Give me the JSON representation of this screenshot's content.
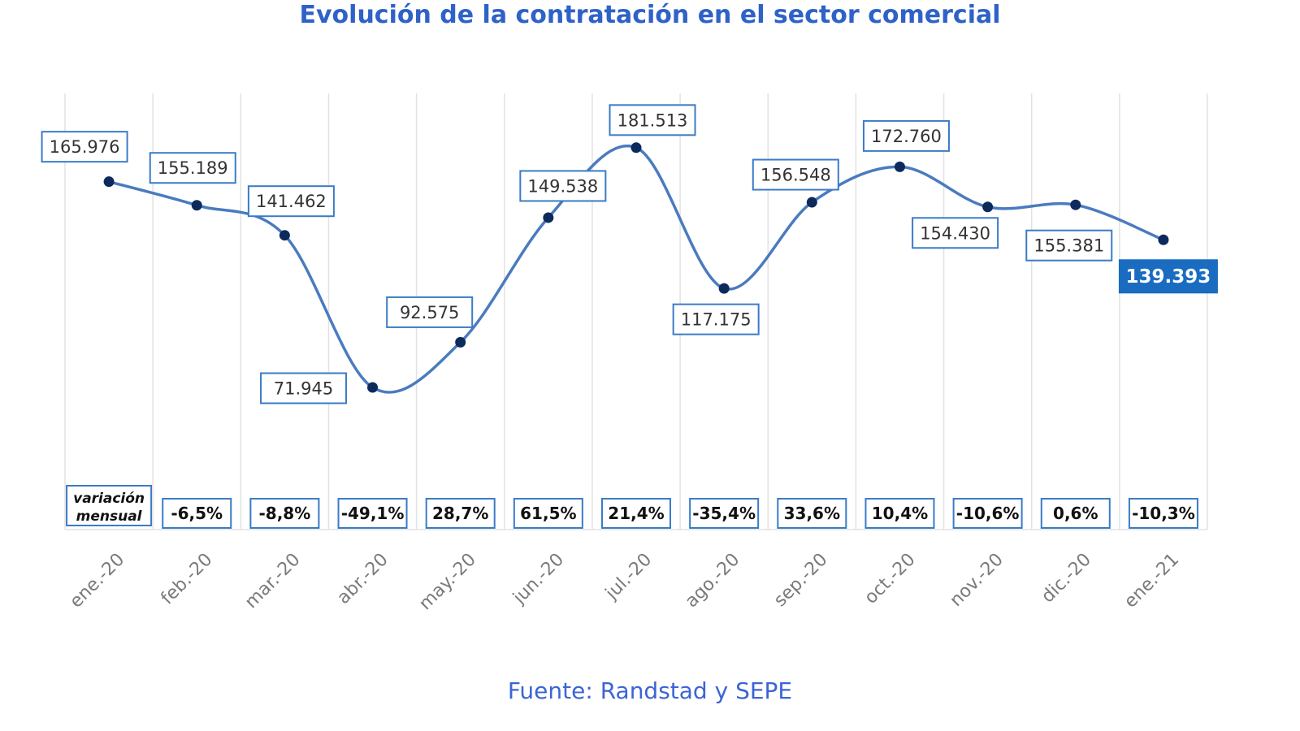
{
  "title": "Evolución de la contratación en el sector comercial",
  "source": "Fuente: Randstad y SEPE",
  "colors": {
    "title": "#2f62c8",
    "line": "#4a7bbf",
    "marker": "#0d2a5c",
    "label_border": "#3a7bc8",
    "highlight": "#1a6cc0",
    "source": "#3c64d4",
    "grid": "#e2e2e2"
  },
  "variation_title": [
    "variación",
    "mensual"
  ],
  "chart_data": {
    "type": "line",
    "title": "Evolución de la contratación en el sector comercial",
    "categories": [
      "ene.-20",
      "feb.-20",
      "mar.-20",
      "abr.-20",
      "may.-20",
      "jun.-20",
      "jul.-20",
      "ago.-20",
      "sep.-20",
      "oct.-20",
      "nov.-20",
      "dic.-20",
      "ene.-21"
    ],
    "values": [
      165976,
      155189,
      141462,
      71945,
      92575,
      149538,
      181513,
      117175,
      156548,
      172760,
      154430,
      155381,
      139393
    ],
    "value_labels": [
      "165.976",
      "155.189",
      "141.462",
      "71.945",
      "92.575",
      "149.538",
      "181.513",
      "117.175",
      "156.548",
      "172.760",
      "154.430",
      "155.381",
      "139.393"
    ],
    "monthly_variation": [
      "",
      "-6,5%",
      "-8,8%",
      "-49,1%",
      "28,7%",
      "61,5%",
      "21,4%",
      "-35,4%",
      "33,6%",
      "10,4%",
      "-10,6%",
      "0,6%",
      "-10,3%"
    ],
    "grid": true,
    "legend": "none",
    "highlight_last": true
  }
}
